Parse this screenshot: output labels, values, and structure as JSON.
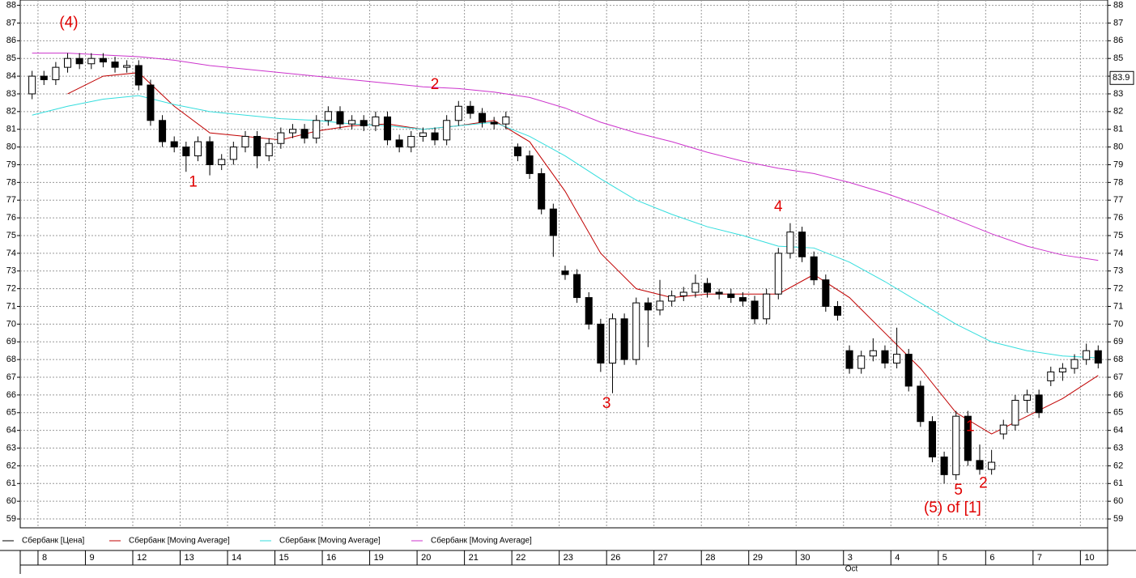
{
  "chart_data": {
    "type": "candlestick",
    "xlim": [
      0,
      91.8
    ],
    "ylim": [
      58.5,
      88.3
    ],
    "yticks": [
      59,
      60,
      61,
      62,
      63,
      64,
      65,
      66,
      67,
      68,
      69,
      70,
      71,
      72,
      73,
      74,
      75,
      76,
      77,
      78,
      79,
      80,
      81,
      82,
      83,
      84,
      85,
      86,
      87,
      88
    ],
    "xticks": [
      {
        "value": 1.5,
        "label": "8"
      },
      {
        "value": 5.5,
        "label": "9"
      },
      {
        "value": 9.5,
        "label": "12"
      },
      {
        "value": 13.5,
        "label": "13"
      },
      {
        "value": 17.5,
        "label": "14"
      },
      {
        "value": 21.5,
        "label": "15"
      },
      {
        "value": 25.5,
        "label": "16"
      },
      {
        "value": 29.5,
        "label": "19"
      },
      {
        "value": 33.5,
        "label": "20"
      },
      {
        "value": 37.5,
        "label": "21"
      },
      {
        "value": 41.5,
        "label": "22"
      },
      {
        "value": 45.5,
        "label": "23"
      },
      {
        "value": 49.5,
        "label": "26"
      },
      {
        "value": 53.5,
        "label": "27"
      },
      {
        "value": 57.5,
        "label": "28"
      },
      {
        "value": 61.5,
        "label": "29"
      },
      {
        "value": 65.5,
        "label": "30"
      },
      {
        "value": 69.5,
        "label": "3"
      },
      {
        "value": 73.5,
        "label": "4"
      },
      {
        "value": 77.5,
        "label": "5"
      },
      {
        "value": 81.5,
        "label": "6"
      },
      {
        "value": 85.5,
        "label": "7"
      },
      {
        "value": 89.5,
        "label": "10"
      }
    ],
    "xtick_sublabels": [
      null,
      null,
      null,
      null,
      null,
      null,
      null,
      null,
      null,
      null,
      null,
      null,
      null,
      null,
      null,
      null,
      null,
      "Oct",
      null,
      null,
      null,
      null,
      null
    ],
    "grid": true,
    "price_label": 83.9,
    "series": [
      {
        "name": "Сбербанк [Цена]",
        "color": "#000000",
        "x": [
          1,
          2,
          3,
          4,
          5,
          6,
          7,
          8,
          9,
          10,
          11,
          12,
          13,
          14,
          15,
          16,
          17,
          18,
          19,
          20,
          21,
          22,
          23,
          24,
          25,
          26,
          27,
          28,
          29,
          30,
          31,
          32,
          33,
          34,
          35,
          36,
          37,
          38,
          39,
          40,
          41,
          42,
          43,
          44,
          45,
          46,
          47,
          48,
          49,
          50,
          51,
          52,
          53,
          54,
          55,
          56,
          57,
          58,
          59,
          60,
          61,
          62,
          63,
          64,
          65,
          66,
          67,
          68,
          69,
          70,
          71,
          72,
          73,
          74,
          75,
          76,
          77,
          78,
          79,
          80,
          81,
          82,
          83,
          84,
          85,
          86,
          87,
          88,
          89,
          90,
          91
        ],
        "candles": [
          [
            83.0,
            84.3,
            82.7,
            84.0
          ],
          [
            84.0,
            84.3,
            83.5,
            83.8
          ],
          [
            83.8,
            84.8,
            83.5,
            84.5
          ],
          [
            84.5,
            85.3,
            84.2,
            85.0
          ],
          [
            85.0,
            85.3,
            84.4,
            84.7
          ],
          [
            84.7,
            85.3,
            84.4,
            85.0
          ],
          [
            85.0,
            85.3,
            84.5,
            84.8
          ],
          [
            84.8,
            85.1,
            84.2,
            84.5
          ],
          [
            84.5,
            84.9,
            84.2,
            84.6
          ],
          [
            84.6,
            84.9,
            83.2,
            83.5
          ],
          [
            83.5,
            83.8,
            81.2,
            81.5
          ],
          [
            81.5,
            81.8,
            80.0,
            80.3
          ],
          [
            80.3,
            80.6,
            79.7,
            80.0
          ],
          [
            80.0,
            80.3,
            78.6,
            79.5
          ],
          [
            79.5,
            80.6,
            79.2,
            80.3
          ],
          [
            80.3,
            80.6,
            78.4,
            79.0
          ],
          [
            79.0,
            79.6,
            78.7,
            79.3
          ],
          [
            79.3,
            80.3,
            79.0,
            80.0
          ],
          [
            80.0,
            80.9,
            79.7,
            80.6
          ],
          [
            80.6,
            80.9,
            78.8,
            79.5
          ],
          [
            79.5,
            80.5,
            79.2,
            80.2
          ],
          [
            80.2,
            81.1,
            79.9,
            80.8
          ],
          [
            80.8,
            81.3,
            80.5,
            81.0
          ],
          [
            81.0,
            81.3,
            80.2,
            80.5
          ],
          [
            80.5,
            81.8,
            80.2,
            81.5
          ],
          [
            81.5,
            82.3,
            81.2,
            82.0
          ],
          [
            82.0,
            82.3,
            81.0,
            81.3
          ],
          [
            81.3,
            81.8,
            81.0,
            81.5
          ],
          [
            81.5,
            81.8,
            80.9,
            81.2
          ],
          [
            81.2,
            82.0,
            80.9,
            81.7
          ],
          [
            81.7,
            82.0,
            80.1,
            80.4
          ],
          [
            80.4,
            80.7,
            79.7,
            80.0
          ],
          [
            80.0,
            80.9,
            79.7,
            80.6
          ],
          [
            80.6,
            81.1,
            80.3,
            80.8
          ],
          [
            80.8,
            81.1,
            80.1,
            80.4
          ],
          [
            80.4,
            81.8,
            80.1,
            81.5
          ],
          [
            81.5,
            82.6,
            81.2,
            82.3
          ],
          [
            82.3,
            82.6,
            81.6,
            81.9
          ],
          [
            81.9,
            82.2,
            81.1,
            81.4
          ],
          [
            81.4,
            81.7,
            81.0,
            81.3
          ],
          [
            81.3,
            82.0,
            81.0,
            81.7
          ],
          [
            80.0,
            80.2,
            79.2,
            79.5
          ],
          [
            79.5,
            79.8,
            78.2,
            78.5
          ],
          [
            78.5,
            78.8,
            76.2,
            76.5
          ],
          [
            76.5,
            76.8,
            73.8,
            75.0
          ],
          [
            73.0,
            73.3,
            72.5,
            72.8
          ],
          [
            72.8,
            73.1,
            71.2,
            71.5
          ],
          [
            71.5,
            71.8,
            69.7,
            70.0
          ],
          [
            70.0,
            70.3,
            67.3,
            67.8
          ],
          [
            67.8,
            70.6,
            66.1,
            70.3
          ],
          [
            70.3,
            70.6,
            67.7,
            68.0
          ],
          [
            68.0,
            71.5,
            67.7,
            71.2
          ],
          [
            71.2,
            71.5,
            68.7,
            70.8
          ],
          [
            70.8,
            72.5,
            70.5,
            71.3
          ],
          [
            71.3,
            71.9,
            71.0,
            71.6
          ],
          [
            71.6,
            72.1,
            71.3,
            71.8
          ],
          [
            71.8,
            72.8,
            71.5,
            72.3
          ],
          [
            72.3,
            72.6,
            71.5,
            71.8
          ],
          [
            71.8,
            72.0,
            71.4,
            71.7
          ],
          [
            71.7,
            72.0,
            71.2,
            71.5
          ],
          [
            71.5,
            71.8,
            71.0,
            71.3
          ],
          [
            71.3,
            71.6,
            70.0,
            70.3
          ],
          [
            70.3,
            72.0,
            70.0,
            71.7
          ],
          [
            71.7,
            74.3,
            71.4,
            74.0
          ],
          [
            74.0,
            75.7,
            73.7,
            75.2
          ],
          [
            75.2,
            75.5,
            73.5,
            73.8
          ],
          [
            73.8,
            74.1,
            72.2,
            72.5
          ],
          [
            72.5,
            72.8,
            70.7,
            71.0
          ],
          [
            71.0,
            71.3,
            70.2,
            70.5
          ],
          [
            68.5,
            68.8,
            67.2,
            67.5
          ],
          [
            67.5,
            68.5,
            67.2,
            68.2
          ],
          [
            68.2,
            69.2,
            67.9,
            68.5
          ],
          [
            68.5,
            68.8,
            67.5,
            67.8
          ],
          [
            67.8,
            69.8,
            67.5,
            68.3
          ],
          [
            68.3,
            68.6,
            66.2,
            66.5
          ],
          [
            66.5,
            66.8,
            64.2,
            64.5
          ],
          [
            64.5,
            64.8,
            62.2,
            62.5
          ],
          [
            62.5,
            62.8,
            61.0,
            61.5
          ],
          [
            61.5,
            65.1,
            61.2,
            64.8
          ],
          [
            64.8,
            65.1,
            62.0,
            62.3
          ],
          [
            62.3,
            63.2,
            61.5,
            61.8
          ],
          [
            61.8,
            62.9,
            61.5,
            62.2
          ],
          [
            63.8,
            64.6,
            63.5,
            64.3
          ],
          [
            64.3,
            66.0,
            64.0,
            65.7
          ],
          [
            65.7,
            66.3,
            65.0,
            66.0
          ],
          [
            66.0,
            66.3,
            64.7,
            65.0
          ],
          [
            66.8,
            67.6,
            66.5,
            67.3
          ],
          [
            67.3,
            67.8,
            66.8,
            67.5
          ],
          [
            67.5,
            68.3,
            67.2,
            68.0
          ],
          [
            68.0,
            68.9,
            67.7,
            68.5
          ],
          [
            68.5,
            68.8,
            67.5,
            67.8
          ]
        ]
      },
      {
        "name": "Сбербанк [Moving Average]",
        "color": "#c00000",
        "x": [
          4,
          7,
          10,
          13,
          16,
          19,
          22,
          25,
          28,
          31,
          34,
          37,
          40,
          43,
          46,
          49,
          52,
          55,
          58,
          61,
          64,
          67,
          70,
          73,
          76,
          79,
          82,
          85,
          88,
          91
        ],
        "values": [
          83.0,
          84.0,
          84.2,
          82.3,
          80.8,
          80.6,
          80.4,
          80.9,
          81.2,
          81.3,
          81.0,
          81.2,
          81.5,
          80.3,
          77.5,
          74.0,
          72.0,
          71.5,
          71.7,
          71.7,
          71.7,
          72.8,
          71.5,
          69.5,
          67.5,
          65.0,
          63.8,
          64.8,
          65.8,
          67.1
        ]
      },
      {
        "name": "Сбербанк [Moving Average]",
        "color": "#33dddd",
        "x": [
          1,
          4,
          7,
          10,
          13,
          16,
          19,
          22,
          25,
          28,
          31,
          34,
          37,
          40,
          43,
          46,
          49,
          52,
          55,
          58,
          61,
          64,
          67,
          70,
          73,
          76,
          79,
          82,
          85,
          88,
          91
        ],
        "values": [
          81.8,
          82.3,
          82.7,
          82.9,
          82.4,
          82.0,
          81.8,
          81.6,
          81.5,
          81.3,
          81.2,
          81.0,
          81.2,
          81.4,
          80.6,
          79.5,
          78.2,
          77.0,
          76.2,
          75.5,
          75.0,
          74.4,
          74.3,
          73.5,
          72.4,
          71.2,
          70.0,
          69.0,
          68.5,
          68.2,
          68.1
        ]
      },
      {
        "name": "Сбербанк [Moving Average]",
        "color": "#cc33cc",
        "x": [
          1,
          4,
          7,
          10,
          13,
          16,
          19,
          22,
          25,
          28,
          31,
          34,
          37,
          40,
          43,
          46,
          49,
          52,
          55,
          58,
          61,
          64,
          67,
          70,
          73,
          76,
          79,
          82,
          85,
          88,
          91
        ],
        "values": [
          85.3,
          85.3,
          85.2,
          85.1,
          84.9,
          84.6,
          84.4,
          84.2,
          84.0,
          83.8,
          83.6,
          83.4,
          83.3,
          83.1,
          82.8,
          82.2,
          81.4,
          80.8,
          80.3,
          79.7,
          79.2,
          78.8,
          78.5,
          78.0,
          77.4,
          76.7,
          75.9,
          75.1,
          74.4,
          73.9,
          73.6
        ]
      }
    ],
    "annotations": [
      {
        "text": "(4)",
        "x": 4.1,
        "y": 87.0
      },
      {
        "text": "1",
        "x": 14.6,
        "y": 78.0
      },
      {
        "text": "2",
        "x": 35.0,
        "y": 83.5
      },
      {
        "text": "3",
        "x": 49.5,
        "y": 65.5
      },
      {
        "text": "4",
        "x": 64.0,
        "y": 76.6
      },
      {
        "text": "1",
        "x": 80.2,
        "y": 64.2
      },
      {
        "text": "5",
        "x": 79.2,
        "y": 60.6
      },
      {
        "text": "2",
        "x": 81.3,
        "y": 61.0
      },
      {
        "text": "(5) of [1]",
        "x": 78.7,
        "y": 59.6
      }
    ]
  }
}
